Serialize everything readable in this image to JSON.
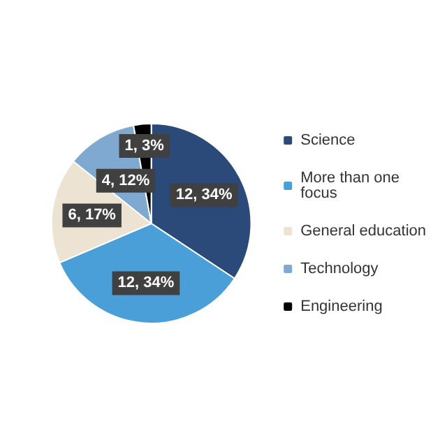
{
  "chart_data": {
    "type": "pie",
    "categories": [
      "Science",
      "More than one focus",
      "General education",
      "Technology",
      "Engineering"
    ],
    "values": [
      12,
      12,
      6,
      4,
      1
    ],
    "colors": [
      "#2b4a7a",
      "#4a9fd8",
      "#ece3d3",
      "#7fa9d0",
      "#000000"
    ],
    "value_labels": [
      "12, 34%",
      "12, 34%",
      "6, 17%",
      "4, 12%",
      "1, 3%"
    ],
    "legend": "right"
  }
}
